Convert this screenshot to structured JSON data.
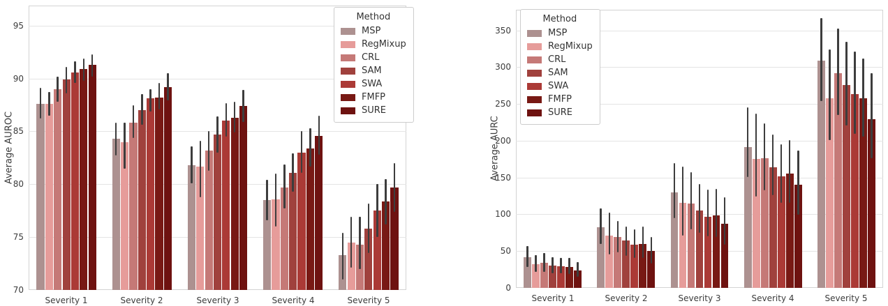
{
  "figure": {
    "background": "#ffffff",
    "text_color": "#3b3b3b",
    "grid_color": "#e4e4e4",
    "spine_color": "#d3d3d3",
    "error_bar_color": "#3d3d3d",
    "legend_border_color": "#cccccc"
  },
  "chart_data": [
    {
      "type": "bar",
      "title": "",
      "xlabel": "",
      "ylabel": "Average AUROC",
      "categories": [
        "Severity 1",
        "Severity 2",
        "Severity 3",
        "Severity 4",
        "Severity 5"
      ],
      "yticks": [
        70,
        75,
        80,
        85,
        90,
        95
      ],
      "ylim": [
        70,
        96.9
      ],
      "grid": true,
      "legend_title": "Method",
      "legend_position": "upper right",
      "error_bars": true,
      "series": [
        {
          "name": "MSP",
          "color": "#ad9190",
          "values": [
            87.6,
            84.3,
            81.8,
            78.5,
            73.3
          ],
          "err_low": [
            86.2,
            82.7,
            80.1,
            76.6,
            71.0
          ],
          "err_high": [
            89.1,
            85.8,
            83.6,
            80.4,
            75.4
          ]
        },
        {
          "name": "RegMixup",
          "color": "#e69c9a",
          "values": [
            87.6,
            84.0,
            81.7,
            78.6,
            74.5
          ],
          "err_low": [
            86.5,
            81.5,
            78.8,
            76.0,
            72.1
          ],
          "err_high": [
            88.7,
            85.8,
            84.1,
            81.0,
            76.9
          ]
        },
        {
          "name": "CRL",
          "color": "#c57977",
          "values": [
            89.0,
            85.8,
            83.2,
            79.7,
            74.3
          ],
          "err_low": [
            87.8,
            84.4,
            81.3,
            77.7,
            72.0
          ],
          "err_high": [
            90.2,
            87.5,
            85.0,
            81.9,
            76.9
          ]
        },
        {
          "name": "SAM",
          "color": "#a0413d",
          "values": [
            89.9,
            87.0,
            84.7,
            81.1,
            75.8
          ],
          "err_low": [
            88.6,
            85.6,
            83.0,
            79.3,
            73.5
          ],
          "err_high": [
            91.1,
            88.5,
            86.4,
            82.9,
            78.2
          ]
        },
        {
          "name": "SWA",
          "color": "#ab3a36",
          "values": [
            90.6,
            88.1,
            86.0,
            83.0,
            77.5
          ],
          "err_low": [
            89.6,
            86.9,
            84.5,
            81.1,
            75.0
          ],
          "err_high": [
            91.6,
            89.0,
            87.7,
            85.0,
            80.0
          ]
        },
        {
          "name": "FMFP",
          "color": "#781914",
          "values": [
            90.9,
            88.2,
            86.3,
            83.4,
            78.4
          ],
          "err_low": [
            89.8,
            87.1,
            84.9,
            81.7,
            76.2
          ],
          "err_high": [
            91.9,
            89.6,
            87.8,
            85.3,
            80.5
          ]
        },
        {
          "name": "SURE",
          "color": "#6e1210",
          "values": [
            91.3,
            89.2,
            87.4,
            84.6,
            79.7
          ],
          "err_low": [
            90.2,
            87.9,
            85.9,
            82.8,
            77.4
          ],
          "err_high": [
            92.3,
            90.5,
            88.9,
            86.5,
            82.0
          ]
        }
      ]
    },
    {
      "type": "bar",
      "title": "",
      "xlabel": "",
      "ylabel": "Average AURC",
      "categories": [
        "Severity 1",
        "Severity 2",
        "Severity 3",
        "Severity 4",
        "Severity 5"
      ],
      "yticks": [
        0,
        50,
        100,
        150,
        200,
        250,
        300,
        350
      ],
      "ylim": [
        0,
        378
      ],
      "grid": true,
      "legend_title": "Method",
      "legend_position": "upper left",
      "error_bars": true,
      "series": [
        {
          "name": "MSP",
          "color": "#ad9190",
          "values": [
            42,
            82,
            130,
            191,
            309
          ],
          "err_low": [
            28,
            60,
            95,
            151,
            254
          ],
          "err_high": [
            57,
            108,
            170,
            245,
            367
          ]
        },
        {
          "name": "RegMixup",
          "color": "#e69c9a",
          "values": [
            32,
            71,
            116,
            175,
            258
          ],
          "err_low": [
            22,
            45,
            71,
            124,
            201
          ],
          "err_high": [
            45,
            102,
            165,
            237,
            324
          ]
        },
        {
          "name": "CRL",
          "color": "#c57977",
          "values": [
            34,
            69,
            115,
            176,
            292
          ],
          "err_low": [
            22,
            48,
            80,
            133,
            235
          ],
          "err_high": [
            47,
            91,
            157,
            224,
            352
          ]
        },
        {
          "name": "SAM",
          "color": "#a0413d",
          "values": [
            30,
            64,
            105,
            164,
            276
          ],
          "err_low": [
            20,
            44,
            75,
            126,
            221
          ],
          "err_high": [
            42,
            83,
            141,
            208,
            334
          ]
        },
        {
          "name": "SWA",
          "color": "#ab3a36",
          "values": [
            29,
            59,
            97,
            152,
            263
          ],
          "err_low": [
            20,
            41,
            70,
            116,
            209
          ],
          "err_high": [
            41,
            80,
            134,
            195,
            321
          ]
        },
        {
          "name": "FMFP",
          "color": "#781914",
          "values": [
            28,
            60,
            99,
            155,
            258
          ],
          "err_low": [
            19,
            41,
            69,
            116,
            206
          ],
          "err_high": [
            41,
            83,
            135,
            201,
            312
          ]
        },
        {
          "name": "SURE",
          "color": "#6e1210",
          "values": [
            24,
            50,
            87,
            140,
            229
          ],
          "err_low": [
            15,
            33,
            59,
            99,
            176
          ],
          "err_high": [
            35,
            69,
            123,
            187,
            292
          ]
        }
      ]
    }
  ]
}
